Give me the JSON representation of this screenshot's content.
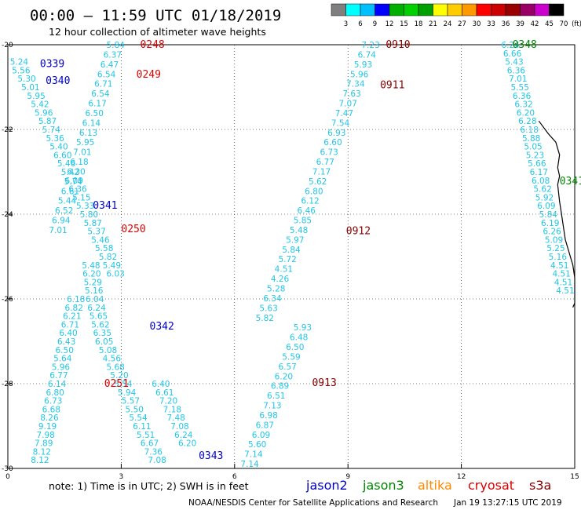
{
  "chart_data": {
    "type": "scatter",
    "title": "00:00 – 11:59 UTC 01/18/2019",
    "subtitle": "12 hour collection of altimeter wave heights",
    "xlim": [
      0,
      15
    ],
    "ylim": [
      -30,
      -20
    ],
    "x_ticks": [
      "0",
      "3",
      "6",
      "9",
      "12",
      "15"
    ],
    "y_ticks": [
      "-20",
      "-22",
      "-24",
      "-26",
      "-28",
      "-30"
    ],
    "colorbar": {
      "labels": [
        "3",
        "6",
        "9",
        "12",
        "15",
        "18",
        "21",
        "24",
        "27",
        "30",
        "33",
        "36",
        "39",
        "42",
        "45",
        "70",
        "(ft)"
      ],
      "colors": [
        "#7f7f7f",
        "#00ffff",
        "#00bfff",
        "#0000ff",
        "#00b000",
        "#00d000",
        "#00a000",
        "#ffff00",
        "#ffcc00",
        "#ff9900",
        "#ff0000",
        "#cc0000",
        "#990000",
        "#990066",
        "#cc00cc",
        "#000000"
      ]
    },
    "swh_color": "#22c6e6",
    "series": [
      {
        "x": [
          2.85,
          2.77,
          2.69,
          2.61,
          2.53,
          2.45,
          2.37,
          2.29,
          2.21,
          2.13,
          2.05,
          1.97,
          1.89,
          1.81,
          1.73,
          1.65,
          1.57,
          1.49,
          1.41,
          1.33
        ],
        "y": [
          -20.0,
          -20.23,
          -20.46,
          -20.69,
          -20.92,
          -21.15,
          -21.38,
          -21.61,
          -21.84,
          -22.07,
          -22.3,
          -22.53,
          -22.76,
          -22.99,
          -23.22,
          -23.45,
          -23.68,
          -23.91,
          -24.14,
          -24.37
        ],
        "values": [
          "5.84",
          "6.37",
          "6.47",
          "6.54",
          "6.71",
          "6.54",
          "6.17",
          "6.50",
          "6.14",
          "6.13",
          "5.95",
          "7.01",
          "6.18",
          "6.30",
          "5.74",
          "6.61",
          "5.44",
          "6.52",
          "6.94",
          "7.01"
        ]
      },
      {
        "x": [
          0.3,
          0.35,
          0.5,
          0.6,
          0.75,
          0.85,
          0.95,
          1.05,
          1.15,
          1.25,
          1.35,
          1.45,
          1.55,
          1.65,
          1.75,
          1.85,
          1.95,
          2.05,
          2.15,
          2.25,
          2.35,
          2.45,
          2.55,
          2.65,
          2.75,
          2.85
        ],
        "y": [
          -20.4,
          -20.6,
          -20.8,
          -21.0,
          -21.2,
          -21.4,
          -21.6,
          -21.8,
          -22.0,
          -22.2,
          -22.4,
          -22.6,
          -22.8,
          -23.0,
          -23.2,
          -23.4,
          -23.6,
          -23.8,
          -24.0,
          -24.2,
          -24.4,
          -24.6,
          -24.8,
          -25.0,
          -25.2,
          -25.4
        ],
        "values": [
          "5.24",
          "5.56",
          "5.30",
          "5.01",
          "5.95",
          "5.42",
          "5.96",
          "5.87",
          "5.74",
          "5.36",
          "5.40",
          "6.60",
          "5.46",
          "5.42",
          "6.09",
          "6.36",
          "5.15",
          "5.33",
          "5.80",
          "5.87",
          "5.37",
          "5.46",
          "5.58",
          "5.82",
          "5.49",
          "6.03"
        ]
      },
      {
        "x": [
          2.2,
          2.22,
          2.25,
          2.28,
          2.3,
          2.35,
          2.4,
          2.45,
          2.5,
          2.55,
          2.65,
          2.75,
          2.85,
          2.95,
          3.05,
          3.15,
          3.25,
          3.35,
          3.45,
          3.55,
          3.65,
          3.75,
          3.85,
          3.95,
          4.05,
          4.15,
          4.25,
          4.35,
          4.45,
          4.55,
          4.65,
          4.75
        ],
        "y": [
          -25.2,
          -25.4,
          -25.6,
          -25.8,
          -26.0,
          -26.2,
          -26.4,
          -26.6,
          -26.8,
          -27.0,
          -27.2,
          -27.4,
          -27.6,
          -27.8,
          -28.0,
          -28.2,
          -28.4,
          -28.6,
          -28.8,
          -29.0,
          -29.2,
          -29.4,
          -29.6,
          -29.8,
          -28.0,
          -28.2,
          -28.4,
          -28.6,
          -28.8,
          -29.0,
          -29.2,
          -29.4
        ],
        "values": [
          "5.48",
          "6.20",
          "5.29",
          "5.16",
          "6.04",
          "6.24",
          "5.65",
          "5.62",
          "6.35",
          "6.05",
          "5.08",
          "4.56",
          "5.68",
          "5.20",
          "5.54",
          "5.94",
          "5.57",
          "5.50",
          "5.54",
          "6.11",
          "5.51",
          "6.67",
          "7.36",
          "7.08",
          "6.40",
          "6.61",
          "7.20",
          "7.18",
          "7.48",
          "7.08",
          "6.24",
          "6.20"
        ]
      },
      {
        "x": [
          1.8,
          1.75,
          1.7,
          1.65,
          1.6,
          1.55,
          1.5,
          1.45,
          1.4,
          1.35,
          1.3,
          1.25,
          1.2,
          1.15,
          1.1,
          1.05,
          1.0,
          0.95,
          0.9,
          0.85
        ],
        "y": [
          -26.0,
          -26.2,
          -26.4,
          -26.6,
          -26.8,
          -27.0,
          -27.2,
          -27.4,
          -27.6,
          -27.8,
          -28.0,
          -28.2,
          -28.4,
          -28.6,
          -28.8,
          -29.0,
          -29.2,
          -29.4,
          -29.6,
          -29.8
        ],
        "values": [
          "6.18",
          "6.82",
          "6.21",
          "6.71",
          "6.40",
          "6.43",
          "6.50",
          "5.64",
          "5.96",
          "6.77",
          "6.14",
          "6.80",
          "6.73",
          "6.68",
          "8.26",
          "9.19",
          "7.98",
          "7.89",
          "8.12",
          "8.12"
        ]
      },
      {
        "x": [
          9.6,
          9.5,
          9.4,
          9.3,
          9.2,
          9.1,
          9.0,
          8.9,
          8.8,
          8.7,
          8.6,
          8.5,
          8.4,
          8.3,
          8.2,
          8.1,
          8.0,
          7.9,
          7.8,
          7.7,
          7.6,
          7.5,
          7.4,
          7.3,
          7.2,
          7.1,
          7.0,
          6.9,
          6.8
        ],
        "y": [
          -20.0,
          -20.23,
          -20.46,
          -20.69,
          -20.92,
          -21.15,
          -21.38,
          -21.61,
          -21.84,
          -22.07,
          -22.3,
          -22.53,
          -22.76,
          -22.99,
          -23.22,
          -23.45,
          -23.68,
          -23.91,
          -24.14,
          -24.37,
          -24.6,
          -24.83,
          -25.06,
          -25.29,
          -25.52,
          -25.75,
          -25.98,
          -26.21,
          -26.44
        ],
        "values": [
          "7.23",
          "6.74",
          "5.93",
          "5.96",
          "7.34",
          "7.63",
          "7.07",
          "7.47",
          "7.54",
          "6.93",
          "6.60",
          "6.73",
          "6.77",
          "7.17",
          "5.62",
          "6.80",
          "6.12",
          "6.46",
          "5.85",
          "5.48",
          "5.97",
          "5.84",
          "5.72",
          "4.51",
          "4.26",
          "5.28",
          "6.34",
          "5.63",
          "5.82"
        ]
      },
      {
        "x": [
          7.8,
          7.7,
          7.6,
          7.5,
          7.4,
          7.3,
          7.2,
          7.1,
          7.0,
          6.9,
          6.8,
          6.7,
          6.6,
          6.5,
          6.4
        ],
        "y": [
          -26.67,
          -26.9,
          -27.13,
          -27.36,
          -27.59,
          -27.82,
          -28.05,
          -28.28,
          -28.51,
          -28.74,
          -28.97,
          -29.2,
          -29.43,
          -29.66,
          -29.89
        ],
        "values": [
          "5.93",
          "6.48",
          "6.50",
          "5.59",
          "6.57",
          "6.20",
          "6.89",
          "6.51",
          "7.13",
          "6.98",
          "6.87",
          "6.09",
          "5.60",
          "7.14",
          "7.14"
        ]
      },
      {
        "x": [
          13.3,
          13.35,
          13.4,
          13.45,
          13.5,
          13.55,
          13.6,
          13.65,
          13.7,
          13.75,
          13.8,
          13.85,
          13.9,
          13.95,
          14.0,
          14.05,
          14.1,
          14.15,
          14.2,
          14.25,
          14.3,
          14.35,
          14.4,
          14.45,
          14.5,
          14.55,
          14.6,
          14.65,
          14.7,
          14.75
        ],
        "y": [
          -20.0,
          -20.2,
          -20.4,
          -20.6,
          -20.8,
          -21.0,
          -21.2,
          -21.4,
          -21.6,
          -21.8,
          -22.0,
          -22.2,
          -22.4,
          -22.6,
          -22.8,
          -23.0,
          -23.2,
          -23.4,
          -23.6,
          -23.8,
          -24.0,
          -24.2,
          -24.4,
          -24.6,
          -24.8,
          -25.0,
          -25.2,
          -25.4,
          -25.6,
          -25.8
        ],
        "values": [
          "6.24",
          "6.66",
          "5.43",
          "6.36",
          "7.01",
          "5.55",
          "6.36",
          "6.32",
          "6.20",
          "6.28",
          "6.18",
          "5.88",
          "5.05",
          "5.23",
          "5.66",
          "6.17",
          "6.08",
          "5.62",
          "5.92",
          "6.09",
          "5.84",
          "6.19",
          "6.26",
          "5.09",
          "5.25",
          "5.16",
          "4.51",
          "4.51",
          "4.51",
          "4.51"
        ]
      }
    ],
    "pass_labels": [
      {
        "label": "0248",
        "x": 3.5,
        "y": -20.0,
        "color": "#dd0000"
      },
      {
        "label": "0249",
        "x": 3.4,
        "y": -20.7,
        "color": "#dd0000"
      },
      {
        "label": "0250",
        "x": 3.0,
        "y": -24.35,
        "color": "#dd0000"
      },
      {
        "label": "0251",
        "x": 2.55,
        "y": -28.0,
        "color": "#dd0000"
      },
      {
        "label": "0339",
        "x": 0.85,
        "y": -20.45,
        "color": "#0000cc"
      },
      {
        "label": "0340",
        "x": 1.0,
        "y": -20.85,
        "color": "#0000cc"
      },
      {
        "label": "0341",
        "x": 2.25,
        "y": -23.8,
        "color": "#0000cc"
      },
      {
        "label": "0342",
        "x": 3.75,
        "y": -26.65,
        "color": "#0000cc"
      },
      {
        "label": "0343",
        "x": 5.05,
        "y": -29.7,
        "color": "#0000cc"
      },
      {
        "label": "0910",
        "x": 10.0,
        "y": -20.0,
        "color": "#880000"
      },
      {
        "label": "0911",
        "x": 9.85,
        "y": -20.95,
        "color": "#880000"
      },
      {
        "label": "0912",
        "x": 8.95,
        "y": -24.4,
        "color": "#880000"
      },
      {
        "label": "0913",
        "x": 8.05,
        "y": -27.98,
        "color": "#880000"
      },
      {
        "label": "0348",
        "x": 13.35,
        "y": -20.0,
        "color": "#008800"
      },
      {
        "label": "0341",
        "x": 14.6,
        "y": -23.22,
        "color": "#008800"
      }
    ],
    "coastline": [
      [
        14.05,
        -21.8
      ],
      [
        14.3,
        -22.1
      ],
      [
        14.5,
        -22.3
      ],
      [
        14.6,
        -22.6
      ],
      [
        14.55,
        -22.9
      ],
      [
        14.6,
        -23.1
      ],
      [
        14.55,
        -23.3
      ],
      [
        14.6,
        -23.7
      ],
      [
        14.65,
        -24.0
      ],
      [
        14.7,
        -24.3
      ],
      [
        14.75,
        -24.6
      ],
      [
        14.85,
        -24.9
      ],
      [
        14.95,
        -25.2
      ],
      [
        15.0,
        -25.5
      ],
      [
        15.0,
        -25.8
      ],
      [
        15.0,
        -26.1
      ],
      [
        14.95,
        -26.2
      ]
    ]
  },
  "note": "note:  1) Time is in UTC;  2) SWH is in feet",
  "missions": [
    {
      "name": "jason2",
      "color": "#0000cc"
    },
    {
      "name": "jason3",
      "color": "#008800"
    },
    {
      "name": "altika",
      "color": "#ff8800"
    },
    {
      "name": "cryosat",
      "color": "#dd0000"
    },
    {
      "name": "s3a",
      "color": "#880000"
    }
  ],
  "footer_left": "NOAA/NESDIS Center for Satellite Applications and Research",
  "footer_right": "Jan 19 13:27:15 UTC 2019"
}
